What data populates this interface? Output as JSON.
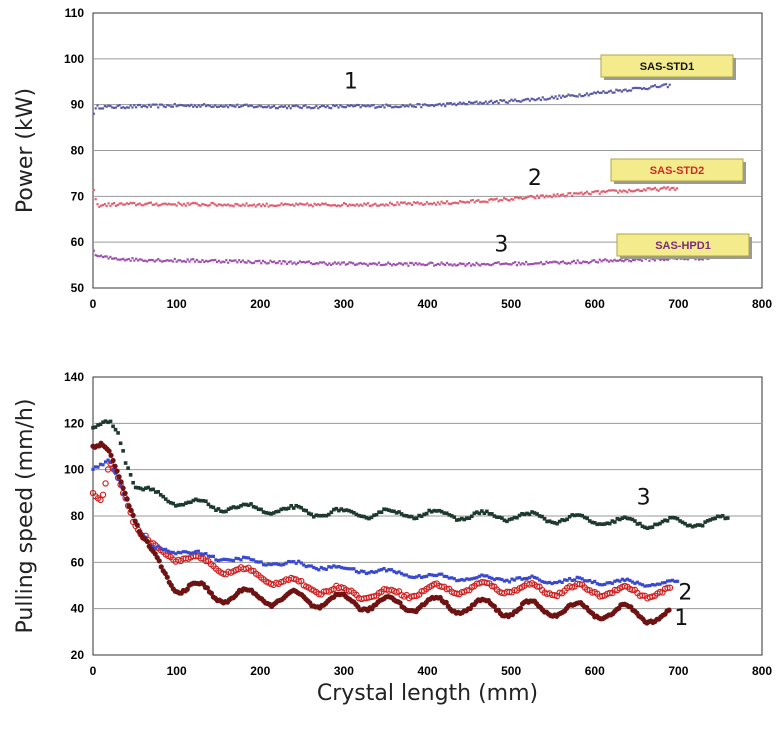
{
  "chart_data": [
    {
      "type": "scatter",
      "ylabel": "Power (kW)",
      "xlim": [
        0,
        800
      ],
      "ylim": [
        50,
        110
      ],
      "x_ticks": [
        "0",
        "100",
        "200",
        "300",
        "400",
        "500",
        "600",
        "700",
        "800"
      ],
      "y_ticks": [
        "50",
        "60",
        "70",
        "80",
        "90",
        "100",
        "110"
      ],
      "grid": "horizontal",
      "series": [
        {
          "name": "SAS-STD1",
          "label": "1",
          "color": "#5a5aa8",
          "points": [
            [
              0,
              88
            ],
            [
              5,
              89.5
            ],
            [
              20,
              89.5
            ],
            [
              50,
              89.6
            ],
            [
              100,
              89.8
            ],
            [
              150,
              89.8
            ],
            [
              200,
              89.6
            ],
            [
              250,
              89.5
            ],
            [
              300,
              89.6
            ],
            [
              350,
              89.7
            ],
            [
              400,
              89.8
            ],
            [
              450,
              90.3
            ],
            [
              500,
              90.8
            ],
            [
              550,
              91.5
            ],
            [
              600,
              92.5
            ],
            [
              650,
              93.5
            ],
            [
              690,
              94.2
            ]
          ]
        },
        {
          "name": "SAS-STD2",
          "label": "2",
          "color": "#e06070",
          "points": [
            [
              0,
              72
            ],
            [
              5,
              68
            ],
            [
              20,
              68.2
            ],
            [
              50,
              68.3
            ],
            [
              100,
              68.3
            ],
            [
              150,
              68.2
            ],
            [
              200,
              68.1
            ],
            [
              250,
              68.1
            ],
            [
              300,
              68.2
            ],
            [
              350,
              68.3
            ],
            [
              400,
              68.4
            ],
            [
              450,
              68.8
            ],
            [
              500,
              69.4
            ],
            [
              550,
              70.1
            ],
            [
              600,
              70.8
            ],
            [
              650,
              71.3
            ],
            [
              700,
              71.8
            ]
          ]
        },
        {
          "name": "SAS-HPD1",
          "label": "3",
          "color": "#a050b0",
          "points": [
            [
              0,
              58
            ],
            [
              5,
              57
            ],
            [
              20,
              56.5
            ],
            [
              50,
              56.2
            ],
            [
              100,
              56
            ],
            [
              150,
              55.9
            ],
            [
              200,
              55.7
            ],
            [
              250,
              55.5
            ],
            [
              300,
              55.3
            ],
            [
              350,
              55.2
            ],
            [
              400,
              55.2
            ],
            [
              450,
              55.2
            ],
            [
              500,
              55.3
            ],
            [
              550,
              55.5
            ],
            [
              600,
              55.8
            ],
            [
              650,
              56.2
            ],
            [
              700,
              56.4
            ],
            [
              740,
              56.6
            ]
          ]
        }
      ],
      "legend": [
        {
          "text": "SAS-STD1",
          "color": "#111111"
        },
        {
          "text": "SAS-STD2",
          "color": "#cc2a2a"
        },
        {
          "text": "SAS-HPD1",
          "color": "#7a2a7a"
        }
      ]
    },
    {
      "type": "scatter",
      "xlabel": "Crystal length (mm)",
      "ylabel": "Pulling speed (mm/h)",
      "xlim": [
        0,
        800
      ],
      "ylim": [
        20,
        140
      ],
      "x_ticks": [
        "0",
        "100",
        "200",
        "300",
        "400",
        "500",
        "600",
        "700",
        "800"
      ],
      "y_ticks": [
        "20",
        "40",
        "60",
        "80",
        "100",
        "120",
        "140"
      ],
      "grid": "horizontal",
      "series": [
        {
          "label": "3",
          "color": "#1e3a2e",
          "points": [
            [
              0,
              118
            ],
            [
              10,
              120
            ],
            [
              20,
              121
            ],
            [
              30,
              116
            ],
            [
              40,
              102
            ],
            [
              50,
              93
            ],
            [
              70,
              90
            ],
            [
              100,
              86
            ],
            [
              150,
              84
            ],
            [
              200,
              83
            ],
            [
              250,
              82
            ],
            [
              300,
              81
            ],
            [
              350,
              81
            ],
            [
              400,
              81
            ],
            [
              450,
              80
            ],
            [
              500,
              80
            ],
            [
              550,
              79
            ],
            [
              600,
              78
            ],
            [
              650,
              77
            ],
            [
              700,
              77
            ],
            [
              760,
              78
            ]
          ]
        },
        {
          "label": "2",
          "color": "#d02020",
          "points": [
            [
              0,
              90
            ],
            [
              10,
              86
            ],
            [
              20,
              103
            ],
            [
              30,
              97
            ],
            [
              40,
              86
            ],
            [
              50,
              76
            ],
            [
              70,
              66
            ],
            [
              100,
              63
            ],
            [
              150,
              58
            ],
            [
              200,
              54
            ],
            [
              250,
              50
            ],
            [
              300,
              47
            ],
            [
              350,
              46
            ],
            [
              400,
              48
            ],
            [
              450,
              49
            ],
            [
              500,
              49
            ],
            [
              550,
              48
            ],
            [
              600,
              48
            ],
            [
              650,
              47
            ],
            [
              690,
              47
            ]
          ]
        },
        {
          "label": "",
          "color": "#3a4ad0",
          "points": [
            [
              0,
              100
            ],
            [
              10,
              102
            ],
            [
              20,
              104
            ],
            [
              30,
              96
            ],
            [
              40,
              86
            ],
            [
              50,
              78
            ],
            [
              70,
              66
            ],
            [
              100,
              65
            ],
            [
              150,
              62
            ],
            [
              200,
              60
            ],
            [
              250,
              59
            ],
            [
              300,
              57
            ],
            [
              350,
              56
            ],
            [
              400,
              54
            ],
            [
              450,
              53
            ],
            [
              500,
              53
            ],
            [
              550,
              52
            ],
            [
              600,
              52
            ],
            [
              650,
              51
            ],
            [
              700,
              51
            ]
          ]
        },
        {
          "label": "1",
          "color": "#6e1212",
          "points": [
            [
              0,
              110
            ],
            [
              10,
              111
            ],
            [
              20,
              108
            ],
            [
              30,
              98
            ],
            [
              40,
              88
            ],
            [
              50,
              78
            ],
            [
              70,
              62
            ],
            [
              100,
              50
            ],
            [
              150,
              46
            ],
            [
              200,
              45
            ],
            [
              250,
              44
            ],
            [
              300,
              43
            ],
            [
              350,
              42
            ],
            [
              400,
              42
            ],
            [
              450,
              41
            ],
            [
              500,
              40
            ],
            [
              550,
              40
            ],
            [
              600,
              39
            ],
            [
              650,
              38
            ],
            [
              690,
              36
            ]
          ]
        }
      ]
    }
  ]
}
